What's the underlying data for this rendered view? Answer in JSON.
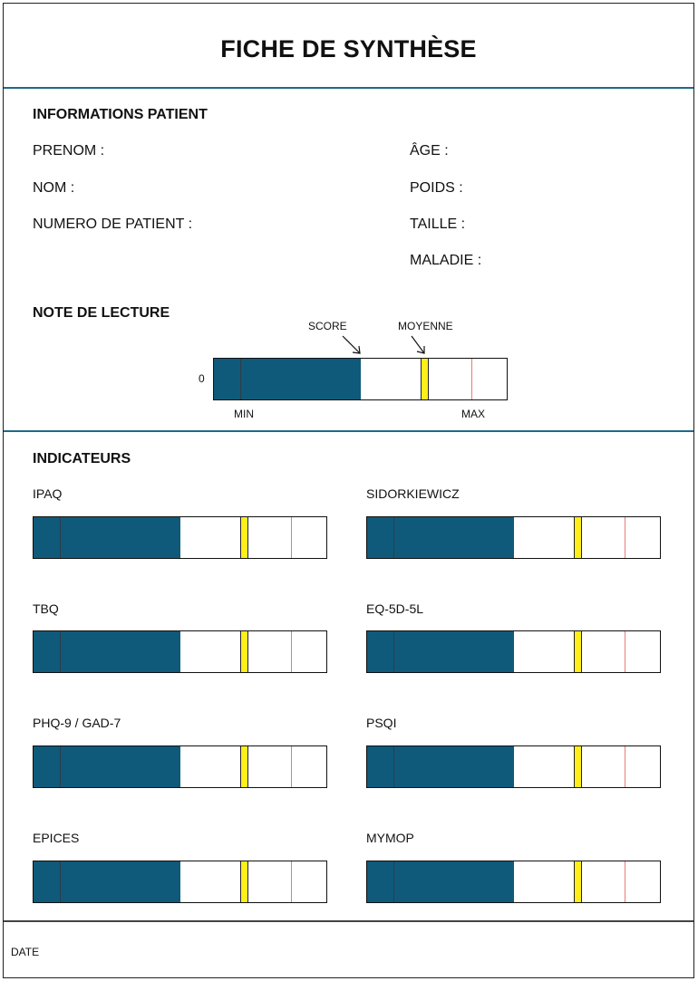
{
  "title": "FICHE DE SYNTHÈSE",
  "patient": {
    "heading": "INFORMATIONS PATIENT",
    "left_fields": [
      "PRENOM :",
      "NOM :",
      "NUMERO DE PATIENT :"
    ],
    "right_fields": [
      "ÂGE :",
      "POIDS :",
      "TAILLE :",
      "MALADIE :"
    ]
  },
  "reading": {
    "heading": "NOTE DE LECTURE",
    "zero_label": "0",
    "score_label": "SCORE",
    "average_label": "MOYENNE",
    "min_label": "MIN",
    "max_label": "MAX",
    "score_fraction": 0.5,
    "average_fraction": 0.72,
    "min_fraction": 0.09,
    "max_fraction": 0.88
  },
  "indicators": {
    "heading": "INDICATEURS",
    "items": [
      {
        "label": "IPAQ",
        "score_fraction": 0.5,
        "average_fraction": 0.72,
        "min_fraction": 0.09,
        "max_fraction": 0.88
      },
      {
        "label": "SIDORKIEWICZ",
        "score_fraction": 0.5,
        "average_fraction": 0.72,
        "min_fraction": 0.09,
        "max_fraction": 0.88
      },
      {
        "label": "TBQ",
        "score_fraction": 0.5,
        "average_fraction": 0.72,
        "min_fraction": 0.09,
        "max_fraction": 0.88
      },
      {
        "label": "EQ-5D-5L",
        "score_fraction": 0.5,
        "average_fraction": 0.72,
        "min_fraction": 0.09,
        "max_fraction": 0.88
      },
      {
        "label": "PHQ-9 / GAD-7",
        "score_fraction": 0.5,
        "average_fraction": 0.72,
        "min_fraction": 0.09,
        "max_fraction": 0.88
      },
      {
        "label": "PSQI",
        "score_fraction": 0.5,
        "average_fraction": 0.72,
        "min_fraction": 0.09,
        "max_fraction": 0.88
      },
      {
        "label": "EPICES",
        "score_fraction": 0.5,
        "average_fraction": 0.72,
        "min_fraction": 0.09,
        "max_fraction": 0.88
      },
      {
        "label": "MYMOP",
        "score_fraction": 0.5,
        "average_fraction": 0.72,
        "min_fraction": 0.09,
        "max_fraction": 0.88
      }
    ]
  },
  "footer": {
    "date_label": "DATE"
  },
  "colors": {
    "score_fill": "#0f5a7a",
    "average_marker": "#ffee1a",
    "max_line": "#e77a7a",
    "divider": "#1f6a8a"
  }
}
